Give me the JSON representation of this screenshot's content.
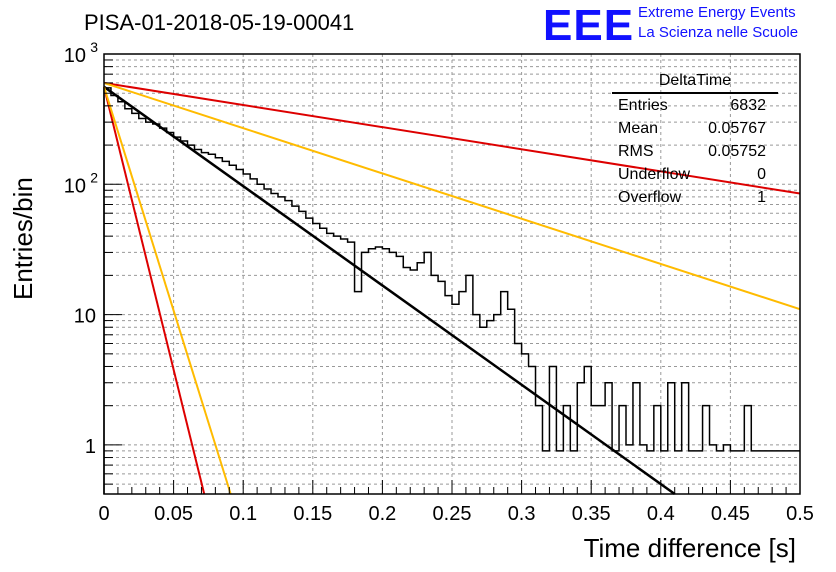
{
  "header": {
    "run_title": "PISA-01-2018-05-19-00041",
    "logo_text": "EEE",
    "tagline_line1": "Extreme Energy Events",
    "tagline_line2": "La Scienza nelle Scuole",
    "brand_color": "#1111ff"
  },
  "stats_box": {
    "name": "DeltaTime",
    "rows": [
      {
        "label": "Entries",
        "value": "6832"
      },
      {
        "label": "Mean",
        "value": "0.05767"
      },
      {
        "label": "RMS",
        "value": "0.05752"
      },
      {
        "label": "Underflow",
        "value": "0"
      },
      {
        "label": "Overflow",
        "value": "1"
      }
    ]
  },
  "chart_data": {
    "type": "line",
    "title": "PISA-01-2018-05-19-00041",
    "xlabel": "Time difference [s]",
    "ylabel": "Entries/bin",
    "xlim": [
      0,
      0.5
    ],
    "ylim": [
      0.42,
      1000
    ],
    "y_scale": "log",
    "grid": true,
    "x_ticks": [
      {
        "value": 0,
        "label": "0"
      },
      {
        "value": 0.05,
        "label": "0.05"
      },
      {
        "value": 0.1,
        "label": "0.1"
      },
      {
        "value": 0.15,
        "label": "0.15"
      },
      {
        "value": 0.2,
        "label": "0.2"
      },
      {
        "value": 0.25,
        "label": "0.25"
      },
      {
        "value": 0.3,
        "label": "0.3"
      },
      {
        "value": 0.35,
        "label": "0.35"
      },
      {
        "value": 0.4,
        "label": "0.4"
      },
      {
        "value": 0.45,
        "label": "0.45"
      },
      {
        "value": 0.5,
        "label": "0.5"
      }
    ],
    "y_ticks": [
      {
        "value": 1,
        "label": "1"
      },
      {
        "value": 10,
        "label": "10"
      },
      {
        "value": 100,
        "label": "10",
        "exponent": "2"
      },
      {
        "value": 1000,
        "label": "10",
        "exponent": "3"
      }
    ],
    "histogram": {
      "color": "#000000",
      "bin_width": 0.005,
      "counts": [
        550,
        480,
        430,
        380,
        350,
        320,
        300,
        290,
        270,
        250,
        230,
        215,
        200,
        185,
        175,
        170,
        160,
        150,
        140,
        130,
        120,
        110,
        100,
        92,
        85,
        80,
        75,
        68,
        62,
        55,
        50,
        46,
        42,
        40,
        38,
        36,
        15,
        30,
        32,
        33,
        32,
        30,
        28,
        23,
        22,
        25,
        30,
        20,
        18,
        14,
        12,
        15,
        20,
        10,
        8,
        9,
        10,
        15,
        11,
        6,
        5,
        4,
        2,
        0.9,
        4,
        0.9,
        2,
        0.9,
        3,
        4,
        2,
        2,
        3,
        0.9,
        2,
        1,
        3,
        1,
        0.9,
        2,
        0.9,
        3,
        0.9,
        3,
        0.9,
        0.9,
        2,
        1,
        0.9,
        1,
        0.9,
        0.9,
        2,
        0.9,
        0.9,
        0.9,
        0.9,
        0.9,
        0.9,
        0.9
      ]
    },
    "series": [
      {
        "color": "#000000",
        "x": [
          0,
          0.41
        ],
        "y": [
          560,
          0.42
        ]
      },
      {
        "color": "#dd0000",
        "x": [
          0,
          0.5
        ],
        "y": [
          600,
          85
        ]
      },
      {
        "color": "#ffbb00",
        "x": [
          0,
          0.5
        ],
        "y": [
          600,
          11
        ]
      },
      {
        "color": "#dd0000",
        "x": [
          0,
          0.072
        ],
        "y": [
          560,
          0.42
        ]
      },
      {
        "color": "#ffbb00",
        "x": [
          0,
          0.091
        ],
        "y": [
          560,
          0.42
        ]
      }
    ]
  }
}
